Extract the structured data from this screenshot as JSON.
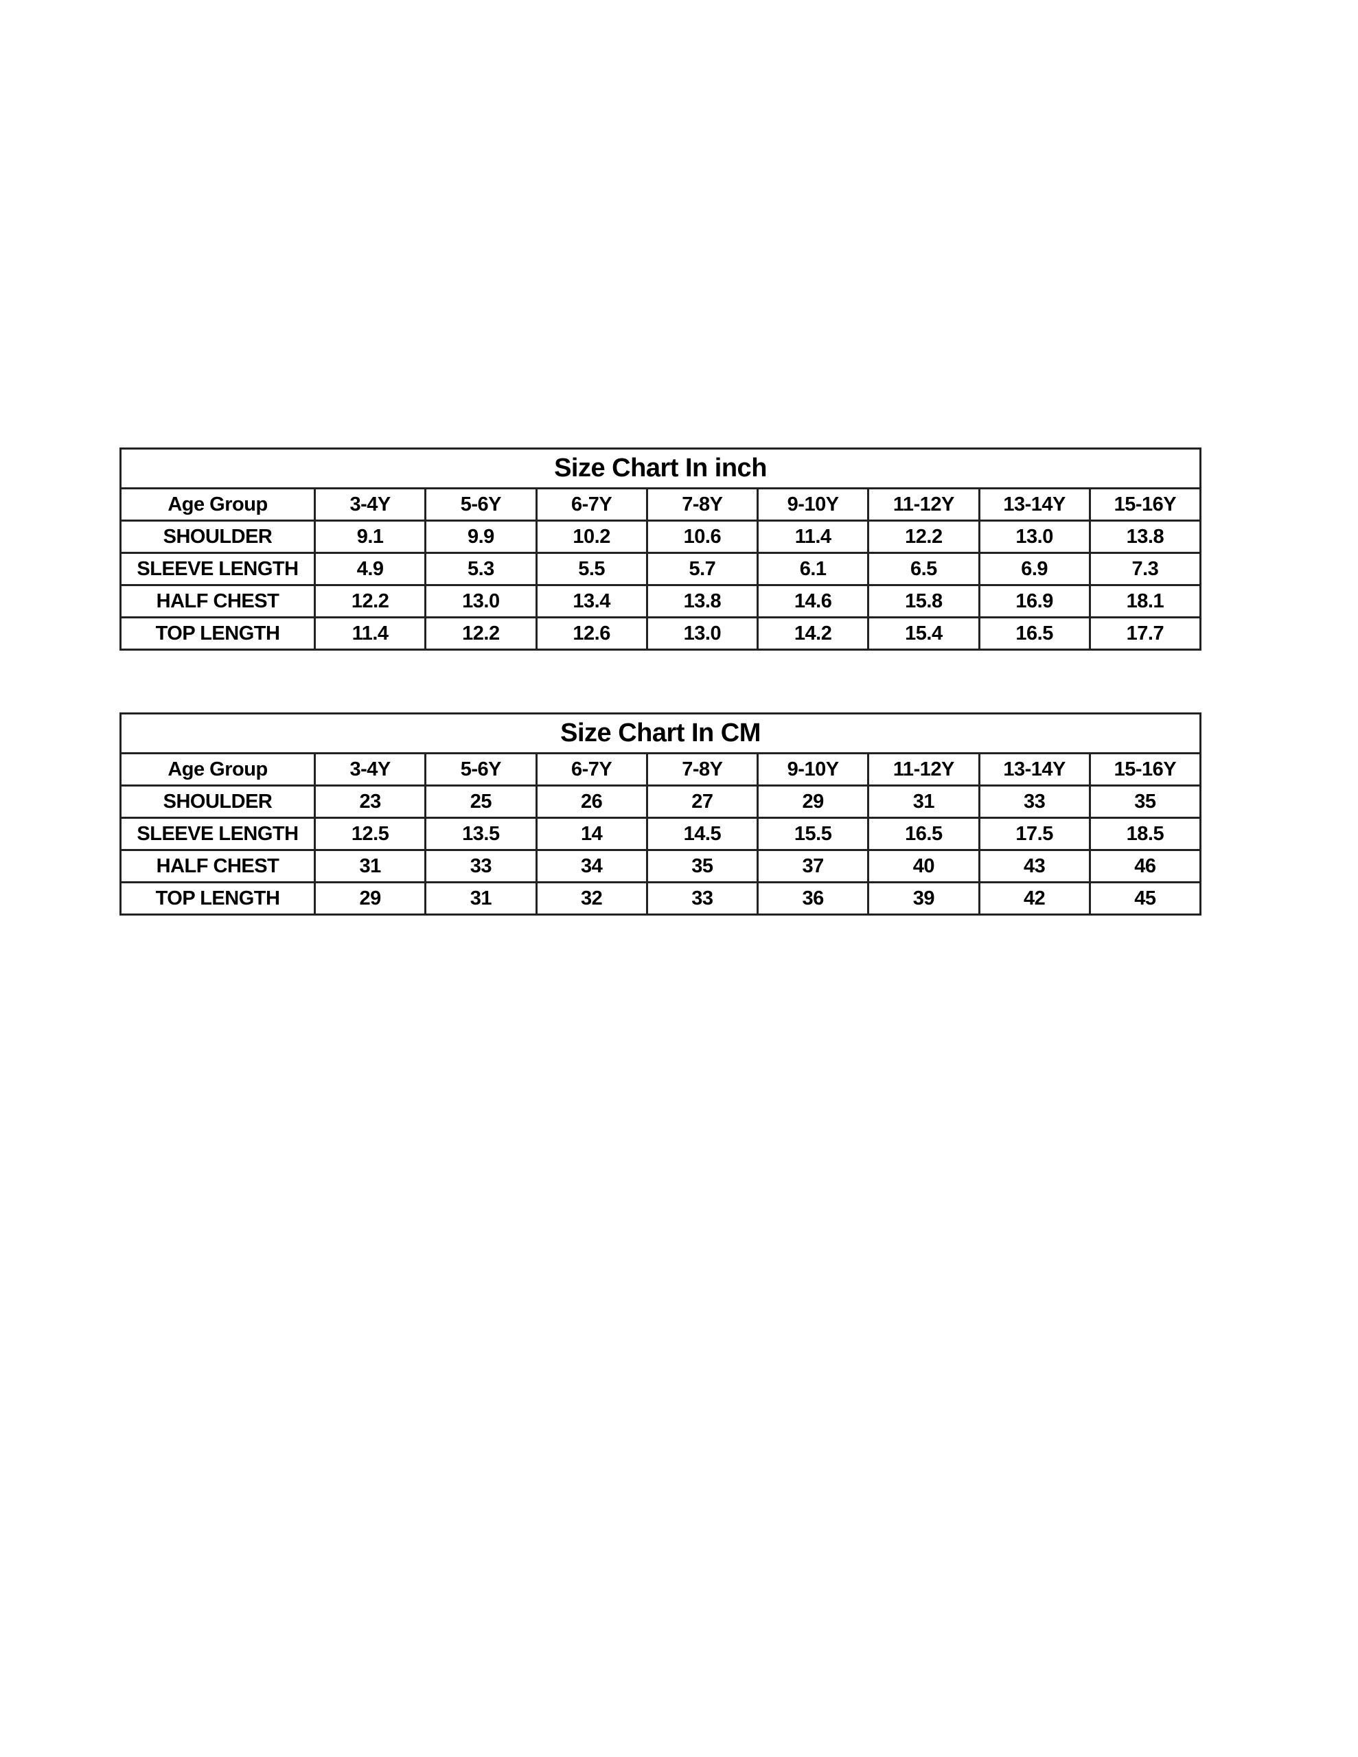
{
  "tables": [
    {
      "title": "Size Chart In inch",
      "header": [
        "Age Group",
        "3-4Y",
        "5-6Y",
        "6-7Y",
        "7-8Y",
        "9-10Y",
        "11-12Y",
        "13-14Y",
        "15-16Y"
      ],
      "rows": [
        [
          "SHOULDER",
          "9.1",
          "9.9",
          "10.2",
          "10.6",
          "11.4",
          "12.2",
          "13.0",
          "13.8"
        ],
        [
          "SLEEVE LENGTH",
          "4.9",
          "5.3",
          "5.5",
          "5.7",
          "6.1",
          "6.5",
          "6.9",
          "7.3"
        ],
        [
          "HALF CHEST",
          "12.2",
          "13.0",
          "13.4",
          "13.8",
          "14.6",
          "15.8",
          "16.9",
          "18.1"
        ],
        [
          "TOP LENGTH",
          "11.4",
          "12.2",
          "12.6",
          "13.0",
          "14.2",
          "15.4",
          "16.5",
          "17.7"
        ]
      ]
    },
    {
      "title": "Size Chart In CM",
      "header": [
        "Age Group",
        "3-4Y",
        "5-6Y",
        "6-7Y",
        "7-8Y",
        "9-10Y",
        "11-12Y",
        "13-14Y",
        "15-16Y"
      ],
      "rows": [
        [
          "SHOULDER",
          "23",
          "25",
          "26",
          "27",
          "29",
          "31",
          "33",
          "35"
        ],
        [
          "SLEEVE LENGTH",
          "12.5",
          "13.5",
          "14",
          "14.5",
          "15.5",
          "16.5",
          "17.5",
          "18.5"
        ],
        [
          "HALF CHEST",
          "31",
          "33",
          "34",
          "35",
          "37",
          "40",
          "43",
          "46"
        ],
        [
          "TOP LENGTH",
          "29",
          "31",
          "32",
          "33",
          "36",
          "39",
          "42",
          "45"
        ]
      ]
    }
  ]
}
